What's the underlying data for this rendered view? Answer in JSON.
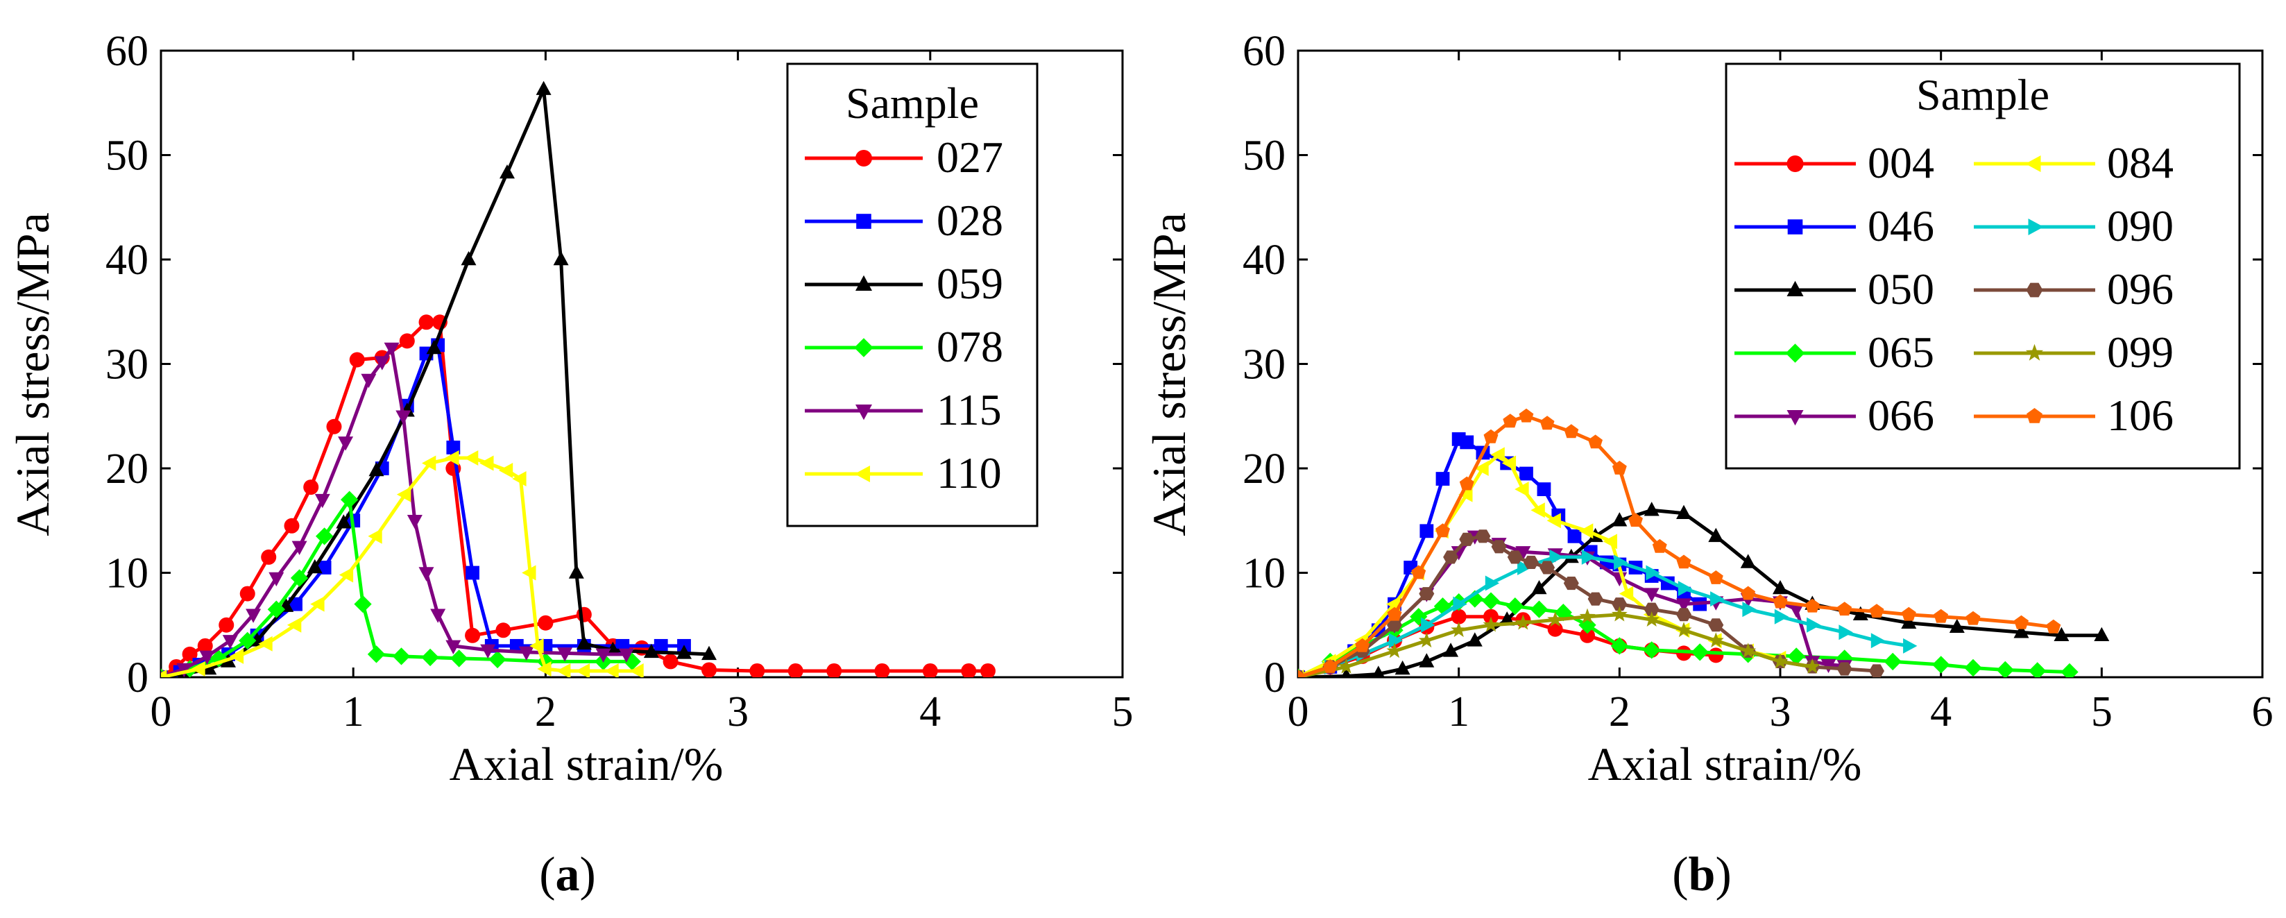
{
  "panels": [
    {
      "caption": "(a)",
      "caption_letter": "a",
      "caption_open": "(",
      "caption_close": ")"
    },
    {
      "caption": "(b)",
      "caption_letter": "b",
      "caption_open": "(",
      "caption_close": ")"
    }
  ],
  "chart_data": [
    {
      "type": "line",
      "panel": "a",
      "xlabel": "Axial strain/%",
      "ylabel": "Axial stress/MPa",
      "xlim": [
        0,
        5
      ],
      "ylim": [
        0,
        60
      ],
      "xticks": [
        0,
        1,
        2,
        3,
        4,
        5
      ],
      "yticks": [
        0,
        10,
        20,
        30,
        40,
        50,
        60
      ],
      "grid": false,
      "legend": {
        "title": "Sample",
        "position": "top-right",
        "columns": 1
      },
      "series": [
        {
          "name": "027",
          "color": "#ff0000",
          "marker": "circle",
          "x": [
            0,
            0.08,
            0.15,
            0.23,
            0.34,
            0.45,
            0.56,
            0.68,
            0.78,
            0.9,
            1.02,
            1.15,
            1.28,
            1.38,
            1.45,
            1.52,
            1.62,
            1.78,
            2.0,
            2.2,
            2.35,
            2.5,
            2.65,
            2.85,
            3.1,
            3.3,
            3.5,
            3.75,
            4.0,
            4.2,
            4.3
          ],
          "y": [
            0,
            1,
            2.2,
            3,
            5,
            8,
            11.5,
            14.5,
            18.2,
            24,
            30.4,
            30.6,
            32.2,
            34,
            34,
            20,
            4,
            4.5,
            5.2,
            6,
            3,
            2.8,
            1.5,
            0.7,
            0.6,
            0.6,
            0.6,
            0.6,
            0.6,
            0.6,
            0.6
          ]
        },
        {
          "name": "028",
          "color": "#0000ff",
          "marker": "square",
          "x": [
            0,
            0.1,
            0.2,
            0.35,
            0.5,
            0.7,
            0.85,
            1.0,
            1.15,
            1.28,
            1.38,
            1.44,
            1.52,
            1.62,
            1.72,
            1.85,
            2.0,
            2.2,
            2.4,
            2.6,
            2.72
          ],
          "y": [
            0,
            0.5,
            1.2,
            2.2,
            4,
            7,
            10.5,
            15,
            20,
            26,
            31,
            31.8,
            22,
            10,
            3,
            3,
            3,
            3,
            3,
            3,
            3
          ]
        },
        {
          "name": "059",
          "color": "#000000",
          "marker": "triangle-up",
          "x": [
            0,
            0.12,
            0.25,
            0.35,
            0.5,
            0.65,
            0.8,
            0.95,
            1.12,
            1.28,
            1.42,
            1.6,
            1.8,
            1.99,
            2.08,
            2.16,
            2.2,
            2.35,
            2.55,
            2.72,
            2.85
          ],
          "y": [
            0,
            0.3,
            0.8,
            1.5,
            3.5,
            6.8,
            10.5,
            14.8,
            19.8,
            25.5,
            31.5,
            40,
            48.3,
            56.3,
            40,
            10,
            3.2,
            2.6,
            2.4,
            2.3,
            2.2
          ]
        },
        {
          "name": "078",
          "color": "#00ff00",
          "marker": "diamond",
          "x": [
            0,
            0.15,
            0.3,
            0.45,
            0.6,
            0.72,
            0.85,
            0.98,
            1.05,
            1.12,
            1.25,
            1.4,
            1.55,
            1.75,
            2.0,
            2.3,
            2.45
          ],
          "y": [
            0,
            0.8,
            1.8,
            3.5,
            6.5,
            9.5,
            13.5,
            17,
            7,
            2.2,
            2,
            1.9,
            1.8,
            1.7,
            1.5,
            1.5,
            1.5
          ]
        },
        {
          "name": "115",
          "color": "#800080",
          "marker": "triangle-down",
          "x": [
            0,
            0.12,
            0.24,
            0.36,
            0.48,
            0.6,
            0.72,
            0.84,
            0.96,
            1.08,
            1.15,
            1.2,
            1.26,
            1.32,
            1.38,
            1.44,
            1.52,
            1.7,
            1.9,
            2.1,
            2.3,
            2.42
          ],
          "y": [
            0,
            0.8,
            2,
            3.5,
            6,
            9.5,
            12.5,
            17,
            22.5,
            28.5,
            30.2,
            31.5,
            25,
            15,
            10,
            6,
            3,
            2.6,
            2.4,
            2.3,
            2.2,
            2.2
          ]
        },
        {
          "name": "110",
          "color": "#ffff00",
          "marker": "triangle-left",
          "x": [
            0,
            0.2,
            0.4,
            0.55,
            0.7,
            0.82,
            0.97,
            1.12,
            1.27,
            1.4,
            1.52,
            1.62,
            1.7,
            1.8,
            1.87,
            1.92,
            1.96,
            2.0,
            2.1,
            2.2,
            2.35,
            2.48
          ],
          "y": [
            0,
            0.8,
            2,
            3.2,
            5,
            7,
            9.8,
            13.5,
            17.5,
            20.5,
            21,
            21,
            20.5,
            19.8,
            19,
            10,
            3,
            0.8,
            0.6,
            0.6,
            0.6,
            0.6
          ]
        }
      ]
    },
    {
      "type": "line",
      "panel": "b",
      "xlabel": "Axial strain/%",
      "ylabel": "Axial stress/MPa",
      "xlim": [
        0,
        6
      ],
      "ylim": [
        0,
        60
      ],
      "xticks": [
        0,
        1,
        2,
        3,
        4,
        5,
        6
      ],
      "yticks": [
        0,
        10,
        20,
        30,
        40,
        50,
        60
      ],
      "grid": false,
      "legend": {
        "title": "Sample",
        "position": "top-right",
        "columns": 2
      },
      "series": [
        {
          "name": "004",
          "color": "#ff0000",
          "marker": "circle",
          "x": [
            0,
            0.2,
            0.4,
            0.6,
            0.8,
            1.0,
            1.2,
            1.4,
            1.6,
            1.8,
            2.0,
            2.2,
            2.4,
            2.6
          ],
          "y": [
            0,
            1,
            2,
            3.5,
            4.8,
            5.8,
            5.8,
            5.5,
            4.6,
            4,
            3,
            2.6,
            2.3,
            2.1
          ]
        },
        {
          "name": "046",
          "color": "#0000ff",
          "marker": "square",
          "x": [
            0,
            0.2,
            0.35,
            0.5,
            0.6,
            0.7,
            0.8,
            0.9,
            1.0,
            1.05,
            1.15,
            1.3,
            1.42,
            1.53,
            1.62,
            1.72,
            1.82,
            1.92,
            2.0,
            2.1,
            2.2,
            2.3,
            2.4,
            2.5
          ],
          "y": [
            0,
            1,
            2.5,
            4.5,
            7,
            10.5,
            14,
            19,
            22.8,
            22.5,
            21.5,
            20.5,
            19.5,
            18,
            15.5,
            13.5,
            12,
            11,
            10.8,
            10.5,
            9.7,
            9,
            8,
            7
          ]
        },
        {
          "name": "050",
          "color": "#000000",
          "marker": "triangle-up",
          "x": [
            0,
            0.3,
            0.5,
            0.65,
            0.8,
            0.95,
            1.1,
            1.3,
            1.5,
            1.7,
            1.85,
            2.0,
            2.2,
            2.4,
            2.6,
            2.8,
            3.0,
            3.2,
            3.5,
            3.8,
            4.1,
            4.5,
            4.75,
            5.0
          ],
          "y": [
            0,
            0.1,
            0.3,
            0.8,
            1.5,
            2.5,
            3.5,
            5.5,
            8.5,
            11.5,
            13.5,
            15,
            16,
            15.7,
            13.5,
            11,
            8.5,
            7,
            6,
            5.2,
            4.8,
            4.3,
            4,
            4
          ]
        },
        {
          "name": "065",
          "color": "#00ff00",
          "marker": "diamond",
          "x": [
            0,
            0.2,
            0.4,
            0.6,
            0.75,
            0.9,
            1.0,
            1.1,
            1.2,
            1.35,
            1.5,
            1.65,
            1.8,
            2.0,
            2.2,
            2.5,
            2.8,
            3.1,
            3.4,
            3.7,
            4.0,
            4.2,
            4.4,
            4.6,
            4.8
          ],
          "y": [
            0,
            1.5,
            3,
            4.5,
            5.8,
            6.8,
            7.2,
            7.5,
            7.3,
            6.8,
            6.5,
            6.2,
            5,
            3,
            2.6,
            2.4,
            2.2,
            2,
            1.8,
            1.5,
            1.2,
            0.9,
            0.7,
            0.6,
            0.5
          ]
        },
        {
          "name": "066",
          "color": "#800080",
          "marker": "triangle-down",
          "x": [
            0,
            0.2,
            0.4,
            0.6,
            0.8,
            1.0,
            1.1,
            1.25,
            1.4,
            1.6,
            1.8,
            2.0,
            2.2,
            2.4,
            2.6,
            2.8,
            3.0,
            3.1,
            3.2,
            3.3,
            3.4
          ],
          "y": [
            0,
            1,
            2.5,
            5,
            8,
            12,
            13.5,
            12.8,
            12,
            11.8,
            11.5,
            9.5,
            8,
            7,
            7.2,
            7.5,
            7.2,
            6.5,
            1.5,
            1.2,
            1.1
          ]
        },
        {
          "name": "084",
          "color": "#ffff00",
          "marker": "triangle-left",
          "x": [
            0,
            0.2,
            0.4,
            0.6,
            0.75,
            0.9,
            1.05,
            1.15,
            1.25,
            1.32,
            1.4,
            1.5,
            1.6,
            1.8,
            1.95,
            2.05,
            2.2,
            2.4,
            2.6,
            2.8,
            3.0
          ],
          "y": [
            0,
            1.5,
            3.5,
            7,
            10,
            14,
            17.5,
            20,
            21.3,
            20.5,
            18,
            16,
            15,
            14,
            13,
            8,
            6,
            4.5,
            3.5,
            2.5,
            1.8
          ]
        },
        {
          "name": "090",
          "color": "#00cccc",
          "marker": "triangle-right",
          "x": [
            0,
            0.2,
            0.4,
            0.6,
            0.8,
            1.0,
            1.2,
            1.4,
            1.6,
            1.8,
            2.0,
            2.2,
            2.4,
            2.6,
            2.8,
            3.0,
            3.2,
            3.4,
            3.6,
            3.8
          ],
          "y": [
            0,
            1,
            2.2,
            3.5,
            5,
            7,
            9,
            10.5,
            11.5,
            11.5,
            11,
            10,
            8.5,
            7.5,
            6.5,
            5.8,
            5,
            4.3,
            3.5,
            3
          ]
        },
        {
          "name": "096",
          "color": "#7b4a3a",
          "marker": "hexagon",
          "x": [
            0,
            0.2,
            0.4,
            0.6,
            0.8,
            0.95,
            1.05,
            1.15,
            1.25,
            1.35,
            1.45,
            1.55,
            1.7,
            1.85,
            2.0,
            2.2,
            2.4,
            2.6,
            2.8,
            3.0,
            3.2,
            3.4,
            3.6
          ],
          "y": [
            0,
            1,
            2.5,
            5,
            8,
            11.5,
            13.2,
            13.5,
            12.5,
            11.5,
            11,
            10.5,
            9,
            7.5,
            7,
            6.5,
            6,
            5,
            2.5,
            1.5,
            1,
            0.8,
            0.6
          ]
        },
        {
          "name": "099",
          "color": "#999900",
          "marker": "star",
          "x": [
            0,
            0.3,
            0.6,
            0.8,
            1.0,
            1.2,
            1.4,
            1.6,
            1.8,
            2.0,
            2.2,
            2.4,
            2.6,
            2.8,
            3.0,
            3.2
          ],
          "y": [
            0,
            1,
            2.5,
            3.5,
            4.5,
            5,
            5.2,
            5.5,
            5.8,
            6,
            5.5,
            4.5,
            3.5,
            2.5,
            1.5,
            1
          ]
        },
        {
          "name": "106",
          "color": "#ff6600",
          "marker": "pentagon",
          "x": [
            0,
            0.2,
            0.4,
            0.6,
            0.75,
            0.9,
            1.05,
            1.2,
            1.32,
            1.42,
            1.55,
            1.7,
            1.85,
            2.0,
            2.1,
            2.25,
            2.4,
            2.6,
            2.8,
            3.0,
            3.2,
            3.4,
            3.6,
            3.8,
            4.0,
            4.2,
            4.5,
            4.7
          ],
          "y": [
            0,
            1,
            3,
            6,
            10,
            14,
            18.5,
            23,
            24.5,
            25,
            24.3,
            23.5,
            22.5,
            20,
            15,
            12.5,
            11,
            9.5,
            8,
            7.2,
            6.8,
            6.5,
            6.3,
            6,
            5.8,
            5.6,
            5.2,
            4.8
          ]
        }
      ]
    }
  ]
}
